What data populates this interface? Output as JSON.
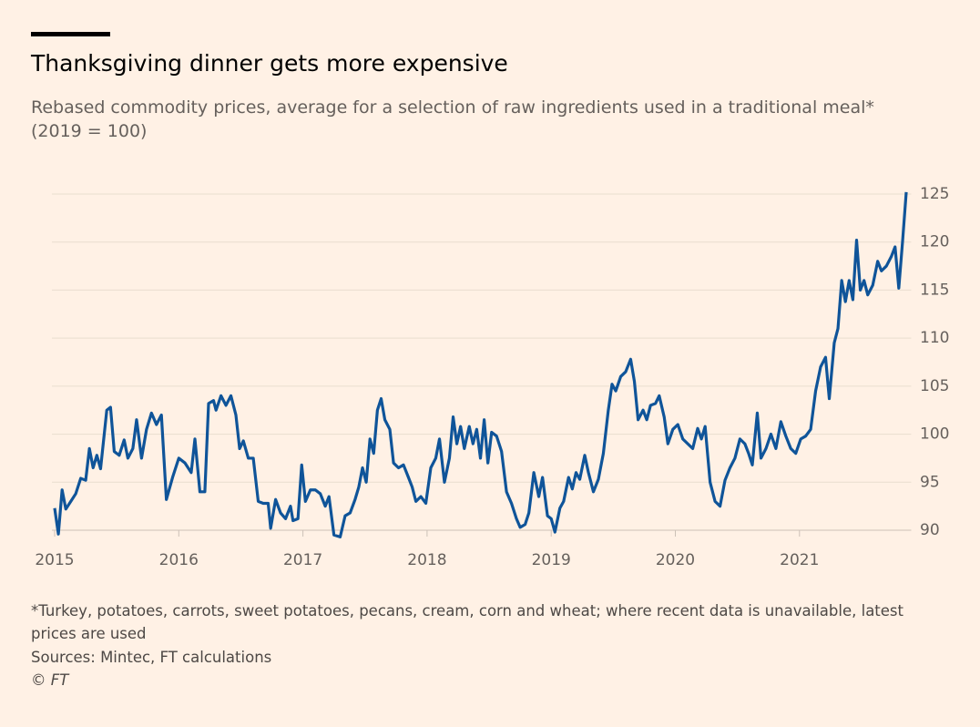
{
  "chart_data": {
    "type": "line",
    "title": "Thanksgiving dinner gets more expensive",
    "subtitle": "Rebased commodity prices, average for a selection of raw ingredients used in a traditional meal* (2019 = 100)",
    "note": "*Turkey, potatoes, carrots, sweet potatoes, pecans, cream, corn and wheat; where recent data is unavailable, latest prices are used",
    "source": "Sources: Mintec, FT calculations",
    "credit": "© FT",
    "xlim": [
      2015,
      2021.9
    ],
    "xticks": [
      2015,
      2016,
      2017,
      2018,
      2019,
      2020,
      2021
    ],
    "ylim": [
      90,
      125
    ],
    "yticks": [
      90,
      95,
      100,
      105,
      110,
      115,
      120,
      125
    ],
    "grid": true,
    "color": "#0f5499",
    "x": [
      2015.0,
      2015.03,
      2015.06,
      2015.09,
      2015.13,
      2015.17,
      2015.21,
      2015.25,
      2015.28,
      2015.31,
      2015.34,
      2015.37,
      2015.42,
      2015.45,
      2015.48,
      2015.52,
      2015.56,
      2015.59,
      2015.63,
      2015.66,
      2015.7,
      2015.74,
      2015.78,
      2015.82,
      2015.86,
      2015.9,
      2015.95,
      2016.0,
      2016.05,
      2016.1,
      2016.13,
      2016.17,
      2016.21,
      2016.24,
      2016.28,
      2016.3,
      2016.34,
      2016.38,
      2016.42,
      2016.46,
      2016.49,
      2016.52,
      2016.56,
      2016.6,
      2016.64,
      2016.68,
      2016.72,
      2016.74,
      2016.78,
      2016.82,
      2016.86,
      2016.9,
      2016.92,
      2016.96,
      2016.99,
      2017.02,
      2017.06,
      2017.1,
      2017.14,
      2017.18,
      2017.21,
      2017.25,
      2017.3,
      2017.34,
      2017.38,
      2017.42,
      2017.45,
      2017.48,
      2017.51,
      2017.54,
      2017.57,
      2017.6,
      2017.63,
      2017.66,
      2017.7,
      2017.73,
      2017.77,
      2017.81,
      2017.85,
      2017.88,
      2017.91,
      2017.95,
      2017.99,
      2018.03,
      2018.07,
      2018.1,
      2018.14,
      2018.18,
      2018.21,
      2018.24,
      2018.27,
      2018.3,
      2018.34,
      2018.37,
      2018.4,
      2018.43,
      2018.46,
      2018.49,
      2018.52,
      2018.56,
      2018.6,
      2018.64,
      2018.68,
      2018.72,
      2018.75,
      2018.79,
      2018.82,
      2018.86,
      2018.9,
      2018.93,
      2018.97,
      2019.0,
      2019.03,
      2019.07,
      2019.1,
      2019.14,
      2019.17,
      2019.2,
      2019.23,
      2019.27,
      2019.3,
      2019.34,
      2019.38,
      2019.42,
      2019.46,
      2019.49,
      2019.52,
      2019.56,
      2019.6,
      2019.64,
      2019.67,
      2019.7,
      2019.74,
      2019.77,
      2019.8,
      2019.84,
      2019.87,
      2019.91,
      2019.94,
      2019.98,
      2020.02,
      2020.06,
      2020.1,
      2020.14,
      2020.18,
      2020.21,
      2020.24,
      2020.28,
      2020.32,
      2020.36,
      2020.4,
      2020.44,
      2020.48,
      2020.52,
      2020.56,
      2020.59,
      2020.62,
      2020.66,
      2020.69,
      2020.73,
      2020.77,
      2020.81,
      2020.85,
      2020.89,
      2020.93,
      2020.97,
      2021.01,
      2021.05,
      2021.09,
      2021.13,
      2021.17,
      2021.21,
      2021.24,
      2021.28,
      2021.31,
      2021.34,
      2021.37,
      2021.4,
      2021.43,
      2021.46,
      2021.49,
      2021.52,
      2021.55,
      2021.59,
      2021.63,
      2021.66,
      2021.7,
      2021.74,
      2021.77,
      2021.8,
      2021.83,
      2021.86
    ],
    "values": [
      92.3,
      89.6,
      94.2,
      92.2,
      93,
      93.8,
      95.4,
      95.2,
      98.5,
      96.5,
      97.8,
      96.4,
      102.5,
      102.8,
      98.2,
      97.8,
      99.4,
      97.5,
      98.5,
      101.5,
      97.5,
      100.5,
      102.2,
      101,
      102,
      93.2,
      95.5,
      97.5,
      97,
      96,
      99.5,
      94,
      94,
      103.2,
      103.5,
      102.5,
      104,
      103,
      104,
      102,
      98.5,
      99.3,
      97.5,
      97.5,
      93,
      92.8,
      92.8,
      90.2,
      93.2,
      91.8,
      91.2,
      92.5,
      91,
      91.2,
      96.8,
      93,
      94.2,
      94.2,
      93.8,
      92.5,
      93.5,
      89.5,
      89.3,
      91.5,
      91.8,
      93.2,
      94.5,
      96.5,
      95,
      99.5,
      98,
      102.5,
      103.7,
      101.5,
      100.5,
      97,
      96.5,
      96.8,
      95.5,
      94.5,
      93,
      93.5,
      92.8,
      96.5,
      97.5,
      99.5,
      95,
      97.5,
      101.8,
      99,
      100.8,
      98.5,
      100.8,
      99,
      100.5,
      97.5,
      101.5,
      97,
      100.2,
      99.8,
      98.2,
      94,
      92.8,
      91.2,
      90.3,
      90.6,
      91.8,
      96,
      93.5,
      95.5,
      91.5,
      91.2,
      89.8,
      92.3,
      93,
      95.5,
      94.3,
      96,
      95.3,
      97.8,
      96,
      94,
      95.3,
      98,
      102.5,
      105.2,
      104.5,
      106,
      106.5,
      107.8,
      105.5,
      101.5,
      102.5,
      101.5,
      103,
      103.2,
      104,
      101.8,
      99,
      100.5,
      101,
      99.5,
      99,
      98.5,
      100.6,
      99.5,
      100.8,
      95,
      93,
      92.5,
      95.2,
      96.5,
      97.5,
      99.5,
      99,
      98,
      96.8,
      102.2,
      97.5,
      98.5,
      100,
      98.5,
      101.3,
      99.8,
      98.5,
      98,
      99.5,
      99.8,
      100.5,
      104.5,
      107,
      108,
      103.7,
      109.5,
      111,
      116,
      113.8,
      116,
      114,
      120.2,
      115,
      116,
      114.5,
      115.5,
      118,
      117,
      117.5,
      118.5,
      119.5,
      115.2,
      120,
      125.2
    ]
  }
}
